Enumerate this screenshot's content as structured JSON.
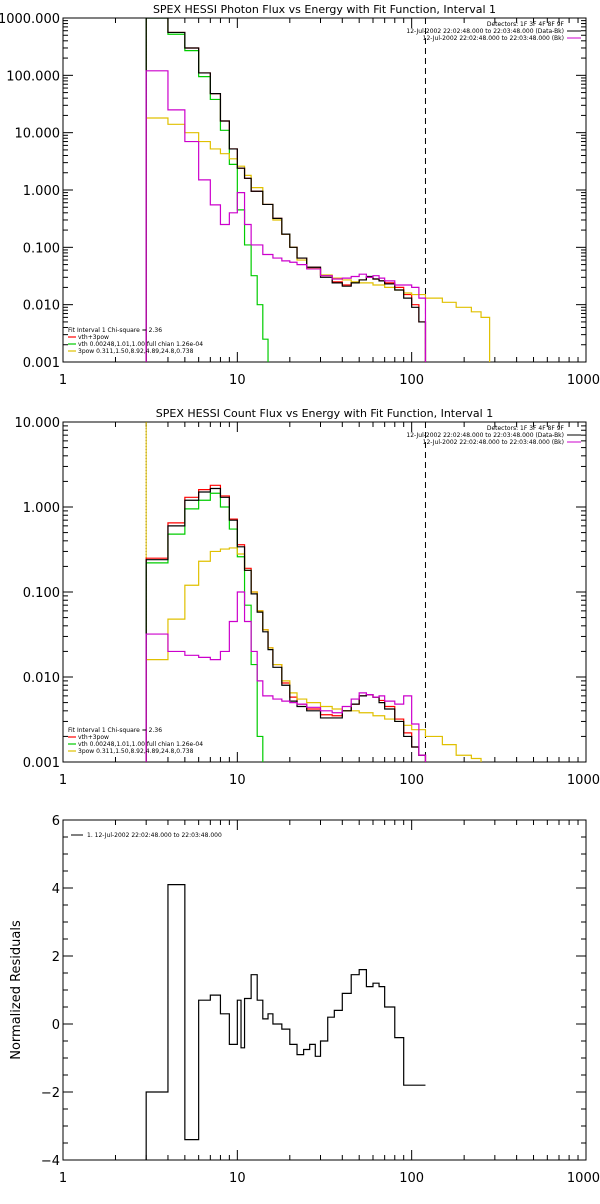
{
  "chart_data": [
    {
      "type": "line",
      "title": "SPEX HESSI Photon Flux vs Energy with Fit Function, Interval 1",
      "xscale": "log",
      "yscale": "log",
      "xlim": [
        1,
        1000
      ],
      "ylim": [
        0.001,
        1000
      ],
      "xticks": [
        {
          "value": 1,
          "label": "1"
        },
        {
          "value": 10,
          "label": "10"
        },
        {
          "value": 100,
          "label": "100"
        },
        {
          "value": 1000,
          "label": "1000"
        }
      ],
      "yticks": [
        {
          "value": 0.001,
          "label": "0.001"
        },
        {
          "value": 0.01,
          "label": "0.010"
        },
        {
          "value": 0.1,
          "label": "0.100"
        },
        {
          "value": 1,
          "label": "1.000"
        },
        {
          "value": 10,
          "label": "10.000"
        },
        {
          "value": 100,
          "label": "100.000"
        },
        {
          "value": 1000,
          "label": "1000.000"
        }
      ],
      "header_lines": [
        "Detectors: 1F 3F 4F 8F 9F",
        "12-Jul-2002 22:02:48.000 to 22:03:48.000 (Data-Bk)",
        "12-Jul-2002 22:02:48.000 to 22:03:48.000 (Bk)"
      ],
      "fit_info": "Fit Interval 1    Chi-square = 2.36",
      "vlines": [
        {
          "x": 3.0,
          "style": "dotted",
          "color": "#000000"
        },
        {
          "x": 3.0,
          "style": "solid",
          "color": "#e0c000"
        },
        {
          "x": 120,
          "style": "dashed",
          "color": "#000000"
        }
      ],
      "series": [
        {
          "legend": "vth+3pow",
          "color": "#ff0000",
          "kind": "step",
          "x": [
            3,
            4,
            5,
            6,
            7,
            8,
            9,
            10,
            11,
            12,
            14,
            16,
            18,
            20,
            22,
            25,
            30,
            35,
            40,
            45,
            50,
            55,
            60,
            65,
            70,
            80,
            90,
            100,
            110,
            120
          ],
          "y": [
            1050,
            560,
            300,
            110,
            48,
            16,
            5.2,
            2.4,
            1.6,
            0.95,
            0.56,
            0.32,
            0.17,
            0.1,
            0.065,
            0.045,
            0.032,
            0.025,
            0.022,
            0.024,
            0.027,
            0.03,
            0.028,
            0.026,
            0.024,
            0.02,
            0.015,
            0.01,
            0.005,
            0.001
          ]
        },
        {
          "legend": "vth 0.00248,1.01,1.00  full chian 1.26e-04",
          "color": "#00cc00",
          "kind": "step",
          "x": [
            3,
            4,
            5,
            6,
            7,
            8,
            9,
            10,
            11,
            12,
            13,
            14,
            15
          ],
          "y": [
            1000,
            520,
            270,
            95,
            38,
            11,
            2.8,
            0.45,
            0.11,
            0.032,
            0.01,
            0.0025,
            0.001
          ]
        },
        {
          "legend": "3pow 0.311,1.50,8.92,4.89,24.8,0.738",
          "color": "#e0c000",
          "kind": "step",
          "x": [
            3,
            4,
            5,
            6,
            7,
            8,
            9,
            10,
            11,
            12,
            14,
            16,
            18,
            20,
            22,
            25,
            30,
            35,
            40,
            45,
            50,
            60,
            70,
            80,
            90,
            100,
            120,
            150,
            180,
            220,
            250,
            280
          ],
          "y": [
            18,
            14,
            10,
            7,
            5.2,
            4.3,
            3.5,
            2.6,
            1.8,
            1.1,
            0.56,
            0.3,
            0.17,
            0.1,
            0.06,
            0.043,
            0.033,
            0.029,
            0.027,
            0.025,
            0.024,
            0.022,
            0.02,
            0.018,
            0.016,
            0.015,
            0.013,
            0.011,
            0.009,
            0.0075,
            0.006,
            0.001
          ]
        },
        {
          "legend": "",
          "color": "#000000",
          "kind": "step",
          "x": [
            3,
            4,
            5,
            6,
            7,
            8,
            9,
            10,
            11,
            12,
            14,
            16,
            18,
            20,
            22,
            25,
            30,
            35,
            40,
            45,
            50,
            55,
            60,
            65,
            70,
            80,
            90,
            100,
            110,
            120
          ],
          "y": [
            1000,
            560,
            300,
            110,
            48,
            16,
            5.2,
            2.4,
            1.6,
            0.95,
            0.56,
            0.32,
            0.17,
            0.1,
            0.065,
            0.045,
            0.03,
            0.024,
            0.021,
            0.024,
            0.027,
            0.031,
            0.028,
            0.026,
            0.023,
            0.018,
            0.013,
            0.009,
            0.005,
            0.001
          ]
        },
        {
          "legend": "",
          "color": "#cc00cc",
          "kind": "step",
          "x": [
            3,
            4,
            5,
            6,
            7,
            8,
            9,
            10,
            11,
            12,
            14,
            16,
            18,
            20,
            22,
            25,
            30,
            35,
            40,
            45,
            50,
            55,
            60,
            65,
            70,
            80,
            90,
            100,
            110,
            120
          ],
          "y": [
            120,
            25,
            7,
            1.5,
            0.55,
            0.25,
            0.4,
            0.9,
            0.25,
            0.11,
            0.075,
            0.065,
            0.058,
            0.055,
            0.05,
            0.042,
            0.032,
            0.028,
            0.029,
            0.031,
            0.034,
            0.03,
            0.032,
            0.029,
            0.026,
            0.022,
            0.022,
            0.02,
            0.013,
            0.001
          ]
        }
      ]
    },
    {
      "type": "line",
      "title": "SPEX HESSI Count Flux vs Energy with Fit Function, Interval 1",
      "xscale": "log",
      "yscale": "log",
      "xlim": [
        1,
        1000
      ],
      "ylim": [
        0.001,
        10
      ],
      "xticks": [
        {
          "value": 1,
          "label": "1"
        },
        {
          "value": 10,
          "label": "10"
        },
        {
          "value": 100,
          "label": "100"
        },
        {
          "value": 1000,
          "label": "1000"
        }
      ],
      "yticks": [
        {
          "value": 0.001,
          "label": "0.001"
        },
        {
          "value": 0.01,
          "label": "0.010"
        },
        {
          "value": 0.1,
          "label": "0.100"
        },
        {
          "value": 1,
          "label": "1.000"
        },
        {
          "value": 10,
          "label": "10.000"
        }
      ],
      "header_lines": [
        "Detectors: 1F 3F 4F 8F 9F",
        "12-Jul-2002 22:02:48.000 to 22:03:48.000 (Data-Bk)",
        "12-Jul-2002 22:02:48.000 to 22:03:48.000 (Bk)"
      ],
      "fit_info": "Fit Interval 1    Chi-square = 2.36",
      "vlines": [
        {
          "x": 3.0,
          "style": "dotted",
          "color": "#000000"
        },
        {
          "x": 3.0,
          "style": "solid",
          "color": "#e0c000"
        },
        {
          "x": 120,
          "style": "dashed",
          "color": "#000000"
        }
      ],
      "series": [
        {
          "legend": "vth+3pow",
          "color": "#ff0000",
          "kind": "step",
          "x": [
            3,
            4,
            5,
            6,
            7,
            8,
            9,
            10,
            11,
            12,
            13,
            14,
            15,
            16,
            18,
            20,
            22,
            25,
            30,
            35,
            40,
            45,
            50,
            55,
            60,
            65,
            70,
            80,
            90,
            100,
            110,
            120
          ],
          "y": [
            0.25,
            0.65,
            1.3,
            1.6,
            1.8,
            1.35,
            0.72,
            0.36,
            0.19,
            0.1,
            0.06,
            0.036,
            0.022,
            0.014,
            0.0085,
            0.0058,
            0.0048,
            0.0042,
            0.0036,
            0.0035,
            0.004,
            0.0048,
            0.006,
            0.0062,
            0.0058,
            0.0053,
            0.0045,
            0.0032,
            0.0022,
            0.0015,
            0.0012,
            0.001
          ]
        },
        {
          "legend": "vth 0.00248,1.01,1.00  full chian 1.26e-04",
          "color": "#00cc00",
          "kind": "step",
          "x": [
            3,
            4,
            5,
            6,
            7,
            8,
            9,
            10,
            11,
            12,
            13,
            14
          ],
          "y": [
            0.22,
            0.48,
            0.95,
            1.2,
            1.45,
            1.0,
            0.55,
            0.26,
            0.07,
            0.014,
            0.002,
            0.001
          ]
        },
        {
          "legend": "3pow 0.311,1.50,8.92,4.89,24.8,0.738",
          "color": "#e0c000",
          "kind": "step",
          "x": [
            3,
            4,
            5,
            6,
            7,
            8,
            9,
            10,
            11,
            12,
            13,
            14,
            15,
            16,
            18,
            20,
            22,
            25,
            30,
            35,
            40,
            50,
            60,
            70,
            80,
            90,
            100,
            120,
            150,
            180,
            220,
            250
          ],
          "y": [
            0.016,
            0.048,
            0.12,
            0.23,
            0.3,
            0.32,
            0.33,
            0.28,
            0.18,
            0.1,
            0.06,
            0.036,
            0.022,
            0.014,
            0.009,
            0.0065,
            0.0055,
            0.005,
            0.0045,
            0.0042,
            0.004,
            0.0038,
            0.0035,
            0.0032,
            0.003,
            0.0027,
            0.0024,
            0.002,
            0.0016,
            0.0012,
            0.0011,
            0.001
          ]
        },
        {
          "legend": "",
          "color": "#000000",
          "kind": "step",
          "x": [
            3,
            4,
            5,
            6,
            7,
            8,
            9,
            10,
            11,
            12,
            13,
            14,
            15,
            16,
            18,
            20,
            22,
            25,
            30,
            35,
            40,
            45,
            50,
            55,
            60,
            65,
            70,
            80,
            90,
            100,
            110,
            120
          ],
          "y": [
            0.24,
            0.6,
            1.2,
            1.5,
            1.65,
            1.3,
            0.7,
            0.34,
            0.18,
            0.095,
            0.058,
            0.034,
            0.021,
            0.013,
            0.008,
            0.0052,
            0.0045,
            0.004,
            0.0033,
            0.0033,
            0.004,
            0.0048,
            0.006,
            0.0062,
            0.0058,
            0.005,
            0.0042,
            0.003,
            0.002,
            0.0015,
            0.0012,
            0.001
          ]
        },
        {
          "legend": "",
          "color": "#cc00cc",
          "kind": "step",
          "x": [
            3,
            4,
            5,
            6,
            7,
            8,
            9,
            10,
            11,
            12,
            13,
            14,
            16,
            18,
            20,
            22,
            25,
            30,
            35,
            40,
            45,
            50,
            55,
            60,
            65,
            70,
            80,
            90,
            100,
            110,
            120
          ],
          "y": [
            0.032,
            0.02,
            0.018,
            0.017,
            0.016,
            0.02,
            0.045,
            0.1,
            0.045,
            0.02,
            0.009,
            0.006,
            0.0055,
            0.0052,
            0.005,
            0.0048,
            0.0044,
            0.004,
            0.0038,
            0.0045,
            0.0055,
            0.0065,
            0.0062,
            0.0058,
            0.006,
            0.0052,
            0.0048,
            0.006,
            0.0028,
            0.0012,
            0.001
          ]
        }
      ]
    },
    {
      "type": "line",
      "title": "",
      "xscale": "log",
      "yscale": "linear",
      "xlim": [
        1,
        1000
      ],
      "ylim": [
        -4,
        6
      ],
      "ylabel": "Normalized Residuals",
      "xticks": [
        {
          "value": 1,
          "label": "1"
        },
        {
          "value": 10,
          "label": "10"
        },
        {
          "value": 100,
          "label": "100"
        },
        {
          "value": 1000,
          "label": "1000"
        }
      ],
      "yticks": [
        {
          "value": -4,
          "label": "−4"
        },
        {
          "value": -2,
          "label": "−2"
        },
        {
          "value": 0,
          "label": "0"
        },
        {
          "value": 2,
          "label": "2"
        },
        {
          "value": 4,
          "label": "4"
        },
        {
          "value": 6,
          "label": "6"
        }
      ],
      "legend_entry": "1. 12-Jul-2002 22:02:48.000 to 22:03:48.000",
      "series": [
        {
          "legend": "1. 12-Jul-2002 22:02:48.000 to 22:03:48.000",
          "color": "#000000",
          "kind": "step",
          "x": [
            3,
            4,
            5,
            6,
            7,
            8,
            9,
            10,
            10.5,
            11,
            12,
            13,
            14,
            15,
            16,
            18,
            20,
            22,
            24,
            26,
            28,
            30,
            33,
            36,
            40,
            45,
            50,
            55,
            60,
            65,
            70,
            80,
            90,
            100,
            110,
            120
          ],
          "y": [
            -2,
            4.1,
            -3.4,
            0.7,
            0.85,
            0.3,
            -0.6,
            0.7,
            -0.7,
            0.75,
            1.45,
            0.7,
            0.15,
            0.3,
            0,
            -0.15,
            -0.6,
            -0.9,
            -0.75,
            -0.6,
            -0.95,
            -0.5,
            0.2,
            0.4,
            0.9,
            1.45,
            1.6,
            1.1,
            1.2,
            1.1,
            0.5,
            -0.4,
            -1.8,
            -1.8,
            -1.8,
            -1.8
          ]
        }
      ]
    }
  ]
}
